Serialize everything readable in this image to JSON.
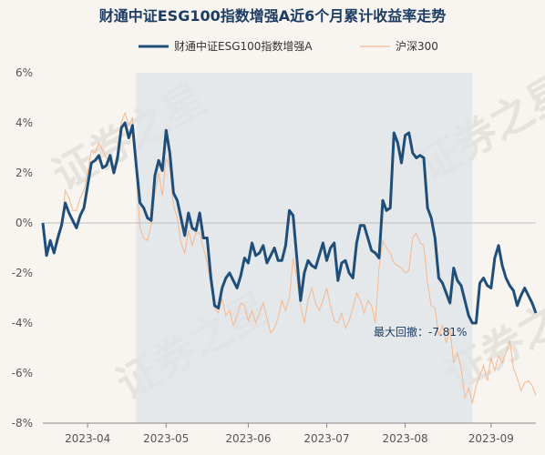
{
  "title": "财通中证ESG100指数增强A近6个月累计收益率走势",
  "colors": {
    "background": "#f8f5f1",
    "series_main": "#1f4e79",
    "series_benchmark": "#f3b88f",
    "shade": "#dfe3e7",
    "title": "#1c3c63",
    "zero_line": "#bfbfbf"
  },
  "drawdown_label": "最大回撤：-7.81%",
  "watermark": "证券之星",
  "chart_data": {
    "type": "line",
    "title": "财通中证ESG100指数增强A近6个月累计收益率走势",
    "xlabel": "",
    "ylabel": "",
    "ylim": [
      -8,
      6
    ],
    "y_ticks": [
      -8,
      -6,
      -4,
      -2,
      0,
      2,
      4,
      6
    ],
    "y_tick_labels": [
      "-8%",
      "-6%",
      "-4%",
      "-2%",
      "0%",
      "2%",
      "4%",
      "6%"
    ],
    "x_ticks": [
      {
        "index": 12,
        "label": "2023-04"
      },
      {
        "index": 33,
        "label": "2023-05"
      },
      {
        "index": 55,
        "label": "2023-06"
      },
      {
        "index": 76,
        "label": "2023-07"
      },
      {
        "index": 97,
        "label": "2023-08"
      },
      {
        "index": 120,
        "label": "2023-09"
      }
    ],
    "legend_position": "top-center",
    "grid": false,
    "n_points": 133,
    "max_drawdown": {
      "value": -7.81,
      "start_index": 25,
      "end_index": 115
    },
    "series": [
      {
        "name": "财通中证ESG100指数增强A",
        "values": [
          0.0,
          -1.3,
          -0.7,
          -1.2,
          -0.6,
          -0.1,
          0.8,
          0.4,
          0.1,
          -0.2,
          0.3,
          0.6,
          1.5,
          2.4,
          2.5,
          2.7,
          2.2,
          2.3,
          2.7,
          2.0,
          2.6,
          3.8,
          4.0,
          3.4,
          3.9,
          2.3,
          0.8,
          0.6,
          0.2,
          0.1,
          1.9,
          2.5,
          2.1,
          3.7,
          2.8,
          1.2,
          0.9,
          0.2,
          -0.5,
          0.4,
          -0.2,
          -0.3,
          0.4,
          -0.6,
          -0.6,
          -2.2,
          -3.3,
          -3.4,
          -2.6,
          -2.2,
          -2.0,
          -2.3,
          -2.6,
          -2.1,
          -1.4,
          -1.6,
          -0.8,
          -1.3,
          -1.2,
          -0.9,
          -1.6,
          -1.3,
          -1.0,
          -1.5,
          -1.5,
          -0.9,
          0.5,
          0.3,
          -1.4,
          -3.1,
          -2.0,
          -1.5,
          -1.7,
          -1.8,
          -1.3,
          -0.8,
          -1.5,
          -1.0,
          -0.8,
          -2.3,
          -1.6,
          -1.5,
          -2.0,
          -2.2,
          -0.8,
          -0.1,
          -0.1,
          -0.6,
          -1.1,
          -1.2,
          -1.4,
          0.9,
          0.5,
          0.6,
          3.6,
          3.2,
          2.4,
          3.5,
          3.6,
          2.8,
          2.6,
          2.7,
          2.6,
          0.6,
          0.2,
          -0.6,
          -2.2,
          -2.4,
          -2.8,
          -3.2,
          -1.8,
          -2.3,
          -2.5,
          -3.1,
          -3.7,
          -4.0,
          -4.0,
          -2.4,
          -2.2,
          -2.5,
          -2.6,
          -1.4,
          -0.9,
          -1.7,
          -2.2,
          -2.5,
          -2.7,
          -3.3,
          -2.9,
          -2.6,
          -2.9,
          -3.2,
          -3.6
        ]
      },
      {
        "name": "沪深300",
        "values": [
          0.0,
          -1.0,
          -0.9,
          -1.1,
          -0.8,
          -0.2,
          1.3,
          1.0,
          0.5,
          0.5,
          1.0,
          1.3,
          2.0,
          2.9,
          2.8,
          3.2,
          2.9,
          2.6,
          2.6,
          2.1,
          2.9,
          4.0,
          4.4,
          3.9,
          4.2,
          2.0,
          -0.2,
          -0.6,
          -0.7,
          -0.1,
          1.2,
          2.0,
          1.1,
          2.6,
          2.2,
          0.7,
          0.2,
          -0.8,
          -1.2,
          -0.3,
          -0.9,
          -0.4,
          -0.4,
          -1.0,
          -1.6,
          -2.5,
          -3.4,
          -3.6,
          -3.0,
          -3.7,
          -3.5,
          -4.1,
          -3.7,
          -3.2,
          -3.3,
          -3.9,
          -3.5,
          -4.0,
          -3.6,
          -3.2,
          -3.8,
          -4.4,
          -4.2,
          -3.8,
          -3.1,
          -3.5,
          -3.0,
          -1.4,
          -2.2,
          -3.3,
          -4.0,
          -3.1,
          -2.6,
          -3.2,
          -3.5,
          -3.1,
          -2.6,
          -3.3,
          -3.9,
          -4.0,
          -3.6,
          -4.2,
          -3.9,
          -3.4,
          -2.8,
          -3.1,
          -3.6,
          -3.1,
          -3.3,
          -4.0,
          -1.8,
          -0.7,
          -1.0,
          -1.2,
          -1.6,
          -1.7,
          -1.8,
          -2.0,
          -1.9,
          -0.6,
          -0.4,
          -0.8,
          -0.9,
          -2.4,
          -3.3,
          -3.4,
          -4.5,
          -4.1,
          -4.8,
          -4.2,
          -5.6,
          -5.2,
          -5.8,
          -7.0,
          -6.6,
          -7.2,
          -6.5,
          -6.1,
          -5.7,
          -6.3,
          -5.4,
          -5.9,
          -5.3,
          -5.6,
          -5.2,
          -4.7,
          -5.8,
          -6.2,
          -6.7,
          -6.4,
          -6.3,
          -6.5,
          -6.9
        ]
      }
    ]
  }
}
